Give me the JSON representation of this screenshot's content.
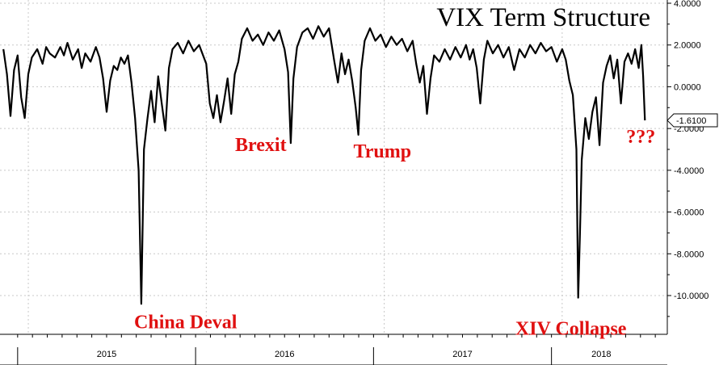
{
  "chart_data": {
    "type": "line",
    "title": "VIX Term Structure",
    "xlabel": "",
    "ylabel": "",
    "x_ticks": [
      "2015",
      "2016",
      "2017",
      "2018"
    ],
    "y_ticks": [
      "4.0000",
      "2.0000",
      "0.0000",
      "-2.0000",
      "-4.0000",
      "-6.0000",
      "-8.0000",
      "-10.0000"
    ],
    "ylim": [
      -12,
      4
    ],
    "xlim": [
      2014.85,
      2018.5
    ],
    "grid": true,
    "last_value": -1.61,
    "last_value_label": "-1.6100",
    "annotations": [
      {
        "text": "China Deval",
        "x": 2015.64,
        "y": -10.4
      },
      {
        "text": "Brexit",
        "x": 2016.48,
        "y": -2.7
      },
      {
        "text": "Trump",
        "x": 2016.85,
        "y": -2.3
      },
      {
        "text": "XIV Collapse",
        "x": 2018.1,
        "y": -10.1
      },
      {
        "text": "???",
        "x": 2018.46,
        "y": -1.61
      }
    ],
    "series": [
      {
        "points": [
          [
            2014.86,
            1.8
          ],
          [
            2014.88,
            0.6
          ],
          [
            2014.9,
            -1.4
          ],
          [
            2014.92,
            0.8
          ],
          [
            2014.94,
            1.5
          ],
          [
            2014.96,
            -0.5
          ],
          [
            2014.98,
            -1.5
          ],
          [
            2015.0,
            0.6
          ],
          [
            2015.02,
            1.4
          ],
          [
            2015.05,
            1.8
          ],
          [
            2015.08,
            1.1
          ],
          [
            2015.1,
            1.9
          ],
          [
            2015.12,
            1.6
          ],
          [
            2015.15,
            1.4
          ],
          [
            2015.18,
            1.9
          ],
          [
            2015.2,
            1.5
          ],
          [
            2015.22,
            2.1
          ],
          [
            2015.25,
            1.3
          ],
          [
            2015.28,
            1.8
          ],
          [
            2015.3,
            0.9
          ],
          [
            2015.32,
            1.6
          ],
          [
            2015.35,
            1.2
          ],
          [
            2015.38,
            1.9
          ],
          [
            2015.4,
            1.4
          ],
          [
            2015.42,
            0.4
          ],
          [
            2015.44,
            -1.2
          ],
          [
            2015.46,
            0.3
          ],
          [
            2015.48,
            1.0
          ],
          [
            2015.5,
            0.8
          ],
          [
            2015.52,
            1.4
          ],
          [
            2015.54,
            1.1
          ],
          [
            2015.56,
            1.5
          ],
          [
            2015.58,
            0.2
          ],
          [
            2015.6,
            -1.5
          ],
          [
            2015.62,
            -4.0
          ],
          [
            2015.635,
            -10.4
          ],
          [
            2015.65,
            -3.0
          ],
          [
            2015.67,
            -1.5
          ],
          [
            2015.69,
            -0.2
          ],
          [
            2015.71,
            -1.7
          ],
          [
            2015.73,
            0.5
          ],
          [
            2015.75,
            -0.8
          ],
          [
            2015.77,
            -2.1
          ],
          [
            2015.79,
            0.9
          ],
          [
            2015.81,
            1.8
          ],
          [
            2015.84,
            2.1
          ],
          [
            2015.87,
            1.6
          ],
          [
            2015.9,
            2.2
          ],
          [
            2015.93,
            1.7
          ],
          [
            2015.96,
            2.0
          ],
          [
            2016.0,
            1.1
          ],
          [
            2016.02,
            -0.8
          ],
          [
            2016.04,
            -1.5
          ],
          [
            2016.06,
            -0.4
          ],
          [
            2016.08,
            -1.7
          ],
          [
            2016.1,
            -0.7
          ],
          [
            2016.12,
            0.4
          ],
          [
            2016.14,
            -1.3
          ],
          [
            2016.16,
            0.6
          ],
          [
            2016.18,
            1.2
          ],
          [
            2016.2,
            2.3
          ],
          [
            2016.23,
            2.8
          ],
          [
            2016.26,
            2.2
          ],
          [
            2016.29,
            2.5
          ],
          [
            2016.32,
            2.0
          ],
          [
            2016.35,
            2.6
          ],
          [
            2016.38,
            2.2
          ],
          [
            2016.41,
            2.7
          ],
          [
            2016.44,
            1.8
          ],
          [
            2016.46,
            0.7
          ],
          [
            2016.475,
            -2.7
          ],
          [
            2016.49,
            0.4
          ],
          [
            2016.51,
            1.9
          ],
          [
            2016.54,
            2.6
          ],
          [
            2016.57,
            2.8
          ],
          [
            2016.6,
            2.3
          ],
          [
            2016.63,
            2.9
          ],
          [
            2016.66,
            2.4
          ],
          [
            2016.69,
            2.8
          ],
          [
            2016.72,
            1.2
          ],
          [
            2016.74,
            0.2
          ],
          [
            2016.76,
            1.6
          ],
          [
            2016.78,
            0.6
          ],
          [
            2016.8,
            1.3
          ],
          [
            2016.82,
            0.3
          ],
          [
            2016.84,
            -1.0
          ],
          [
            2016.855,
            -2.3
          ],
          [
            2016.87,
            0.8
          ],
          [
            2016.89,
            2.2
          ],
          [
            2016.92,
            2.8
          ],
          [
            2016.95,
            2.2
          ],
          [
            2016.98,
            2.5
          ],
          [
            2017.01,
            1.9
          ],
          [
            2017.04,
            2.4
          ],
          [
            2017.07,
            2.0
          ],
          [
            2017.1,
            2.3
          ],
          [
            2017.13,
            1.7
          ],
          [
            2017.16,
            2.2
          ],
          [
            2017.18,
            1.1
          ],
          [
            2017.2,
            0.2
          ],
          [
            2017.22,
            1.0
          ],
          [
            2017.24,
            -1.3
          ],
          [
            2017.26,
            0.4
          ],
          [
            2017.28,
            1.5
          ],
          [
            2017.31,
            1.2
          ],
          [
            2017.34,
            1.8
          ],
          [
            2017.37,
            1.3
          ],
          [
            2017.4,
            1.9
          ],
          [
            2017.43,
            1.4
          ],
          [
            2017.46,
            2.0
          ],
          [
            2017.48,
            1.3
          ],
          [
            2017.5,
            1.8
          ],
          [
            2017.52,
            0.9
          ],
          [
            2017.54,
            -0.8
          ],
          [
            2017.56,
            1.3
          ],
          [
            2017.58,
            2.2
          ],
          [
            2017.61,
            1.6
          ],
          [
            2017.64,
            2.0
          ],
          [
            2017.67,
            1.4
          ],
          [
            2017.7,
            1.9
          ],
          [
            2017.73,
            0.8
          ],
          [
            2017.76,
            1.8
          ],
          [
            2017.79,
            1.4
          ],
          [
            2017.82,
            2.0
          ],
          [
            2017.85,
            1.6
          ],
          [
            2017.88,
            2.1
          ],
          [
            2017.91,
            1.7
          ],
          [
            2017.94,
            1.9
          ],
          [
            2017.97,
            1.2
          ],
          [
            2018.0,
            1.8
          ],
          [
            2018.02,
            1.3
          ],
          [
            2018.04,
            0.3
          ],
          [
            2018.06,
            -0.4
          ],
          [
            2018.08,
            -3.0
          ],
          [
            2018.09,
            -10.1
          ],
          [
            2018.1,
            -7.0
          ],
          [
            2018.11,
            -3.5
          ],
          [
            2018.13,
            -1.5
          ],
          [
            2018.15,
            -2.5
          ],
          [
            2018.17,
            -1.2
          ],
          [
            2018.19,
            -0.5
          ],
          [
            2018.21,
            -2.8
          ],
          [
            2018.23,
            0.2
          ],
          [
            2018.25,
            1.0
          ],
          [
            2018.27,
            1.5
          ],
          [
            2018.29,
            0.4
          ],
          [
            2018.31,
            1.3
          ],
          [
            2018.33,
            -0.8
          ],
          [
            2018.35,
            1.2
          ],
          [
            2018.37,
            1.6
          ],
          [
            2018.39,
            1.1
          ],
          [
            2018.41,
            1.8
          ],
          [
            2018.43,
            0.9
          ],
          [
            2018.445,
            2.0
          ],
          [
            2018.455,
            0.5
          ],
          [
            2018.465,
            -1.61
          ]
        ]
      }
    ]
  }
}
